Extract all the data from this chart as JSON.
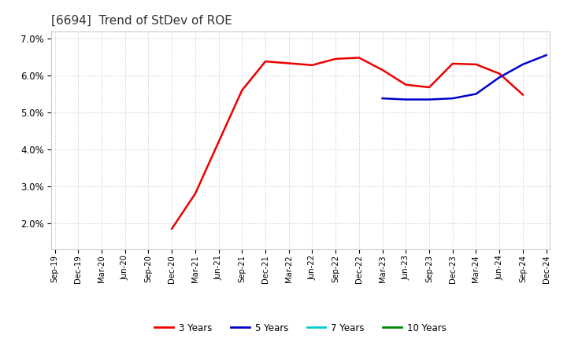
{
  "title": "[6694]  Trend of StDev of ROE",
  "title_fontsize": 11,
  "background_color": "#ffffff",
  "plot_bg_color": "#ffffff",
  "grid_color": "#aaaaaa",
  "ylim": [
    0.013,
    0.072
  ],
  "yticks": [
    0.02,
    0.03,
    0.04,
    0.05,
    0.06,
    0.07
  ],
  "series": {
    "3 Years": {
      "color": "#ee0000",
      "linewidth": 1.8,
      "data_x": [
        "Dec-20",
        "Mar-21",
        "Jun-21",
        "Sep-21",
        "Dec-21",
        "Mar-22",
        "Jun-22",
        "Sep-22",
        "Dec-22",
        "Mar-23",
        "Jun-23",
        "Sep-23",
        "Dec-23",
        "Mar-24",
        "Jun-24",
        "Sep-24"
      ],
      "data_y": [
        0.0185,
        0.028,
        0.042,
        0.056,
        0.0638,
        0.0633,
        0.0628,
        0.0645,
        0.0648,
        0.0615,
        0.0575,
        0.0568,
        0.0632,
        0.063,
        0.0605,
        0.0548
      ]
    },
    "5 Years": {
      "color": "#0000cc",
      "linewidth": 1.8,
      "data_x": [
        "Mar-23",
        "Jun-23",
        "Sep-23",
        "Dec-23",
        "Mar-24",
        "Jun-24",
        "Sep-24",
        "Dec-24"
      ],
      "data_y": [
        0.0538,
        0.0535,
        0.0535,
        0.0538,
        0.055,
        0.0595,
        0.063,
        0.0655
      ]
    },
    "7 Years": {
      "color": "#00cccc",
      "linewidth": 1.8,
      "data_x": [],
      "data_y": []
    },
    "10 Years": {
      "color": "#008800",
      "linewidth": 1.8,
      "data_x": [],
      "data_y": []
    }
  },
  "xtick_labels": [
    "Sep-19",
    "Dec-19",
    "Mar-20",
    "Jun-20",
    "Sep-20",
    "Dec-20",
    "Mar-21",
    "Jun-21",
    "Sep-21",
    "Dec-21",
    "Mar-22",
    "Jun-22",
    "Sep-22",
    "Dec-22",
    "Mar-23",
    "Jun-23",
    "Sep-23",
    "Dec-23",
    "Mar-24",
    "Jun-24",
    "Sep-24",
    "Dec-24"
  ],
  "legend_entries": [
    "3 Years",
    "5 Years",
    "7 Years",
    "10 Years"
  ],
  "legend_colors": [
    "#ee0000",
    "#0000cc",
    "#00cccc",
    "#008800"
  ]
}
